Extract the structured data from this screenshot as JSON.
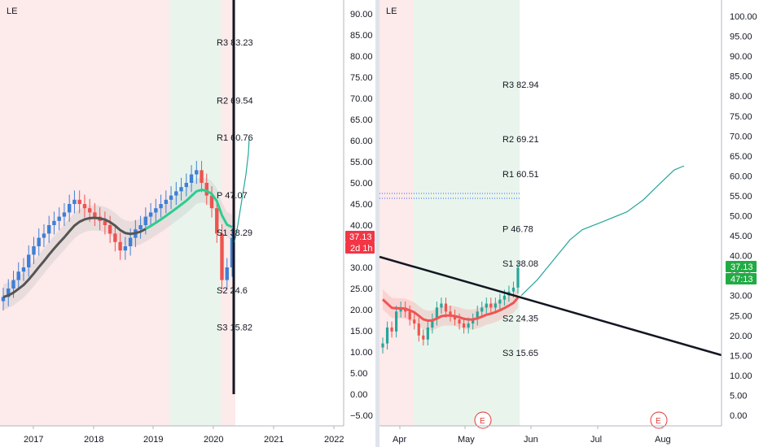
{
  "colors": {
    "bg": "#ffffff",
    "red_zone": "#fdeaea",
    "green_zone": "#e9f5ec",
    "bull": "#26a69a",
    "bear": "#ef5350",
    "candle_up": "#3f7fd6",
    "candle_down": "#ef5350",
    "axis_line": "#9598a1",
    "trend_line": "#131722",
    "cyan_path": "#26a69a",
    "ema_green": "#2ecc8f",
    "ema_gray": "#555555",
    "ema_red": "#f05454",
    "badge_red": "#f23645",
    "badge_green": "#22ab44",
    "dotted_blue": "#2962ff"
  },
  "left_panel": {
    "symbol": "LE",
    "y_ticks": [
      "90.00",
      "85.00",
      "80.00",
      "75.00",
      "70.00",
      "65.00",
      "60.00",
      "55.00",
      "50.00",
      "45.00",
      "40.00",
      "35.00",
      "30.00",
      "25.00",
      "20.00",
      "15.00",
      "10.00",
      "5.00",
      "0.00",
      "−5.00"
    ],
    "x_ticks": [
      "2017",
      "2018",
      "2019",
      "2020",
      "2021",
      "2022"
    ],
    "pivot_levels": [
      {
        "label": "R3 83.23",
        "value": 83.23
      },
      {
        "label": "R2 69.54",
        "value": 69.54
      },
      {
        "label": "R1 60.76",
        "value": 60.76
      },
      {
        "label": "P 47.07",
        "value": 47.07
      },
      {
        "label": "S1 38.29",
        "value": 38.29
      },
      {
        "label": "S2 24.6",
        "value": 24.6
      },
      {
        "label": "S3 15.82",
        "value": 15.82
      }
    ],
    "price_badge": {
      "value": "37.13",
      "countdown": "2d 1h"
    }
  },
  "right_panel": {
    "symbol": "LE",
    "y_ticks": [
      "100.00",
      "95.00",
      "90.00",
      "85.00",
      "80.00",
      "75.00",
      "70.00",
      "65.00",
      "60.00",
      "55.00",
      "50.00",
      "45.00",
      "40.00",
      "35.00",
      "30.00",
      "25.00",
      "20.00",
      "15.00",
      "10.00",
      "5.00",
      "0.00"
    ],
    "x_ticks": [
      "Apr",
      "May",
      "Jun",
      "Jul",
      "Aug"
    ],
    "pivot_levels": [
      {
        "label": "R3 82.94",
        "value": 82.94
      },
      {
        "label": "R2 69.21",
        "value": 69.21
      },
      {
        "label": "R1 60.51",
        "value": 60.51
      },
      {
        "label": "P 46.78",
        "value": 46.78
      },
      {
        "label": "S1 38.08",
        "value": 38.08
      },
      {
        "label": "S2 24.35",
        "value": 24.35
      },
      {
        "label": "S3 15.65",
        "value": 15.65
      }
    ],
    "earnings_markers": [
      "E",
      "E"
    ],
    "price_badges": {
      "price": "37.13",
      "countdown": "47:13"
    }
  },
  "chart_data": [
    {
      "type": "candlestick",
      "panel": "left",
      "x_ticks": [
        "2017",
        "2018",
        "2019",
        "2020",
        "2021",
        "2022"
      ],
      "ylim": [
        -7,
        96
      ],
      "weekly_closes_approx": [
        23,
        25,
        27,
        29,
        30,
        33,
        35,
        37,
        38,
        40,
        41,
        42,
        43,
        45,
        46,
        45,
        44,
        43,
        42,
        41,
        40,
        38,
        36,
        34,
        35,
        37,
        39,
        40,
        42,
        43,
        44,
        45,
        46,
        47,
        48,
        49,
        50,
        52,
        53,
        50,
        47,
        44,
        38,
        27,
        30,
        37
      ],
      "projection": [
        [
          2020.45,
          37
        ],
        [
          2020.47,
          45
        ],
        [
          2020.49,
          52
        ],
        [
          2020.51,
          57
        ],
        [
          2020.53,
          61
        ]
      ],
      "zones": [
        {
          "from": 2016.5,
          "to": 2019.3,
          "kind": "red"
        },
        {
          "from": 2019.3,
          "to": 2020.0,
          "kind": "green"
        },
        {
          "from": 2020.0,
          "to": 2020.4,
          "kind": "red"
        }
      ]
    },
    {
      "type": "candlestick",
      "panel": "right",
      "x_ticks": [
        "Apr",
        "May",
        "Jun",
        "Jul",
        "Aug"
      ],
      "ylim": [
        -2,
        103
      ],
      "daily_closes_approx": [
        18,
        22,
        21,
        26,
        27,
        26,
        24,
        23,
        20,
        19,
        22,
        24,
        27,
        28,
        26,
        25,
        24,
        23,
        22,
        23,
        24,
        26,
        27,
        28,
        27,
        28,
        29,
        30,
        31,
        32,
        37
      ],
      "trendline": [
        [
          0,
          39
        ],
        [
          1,
          15
        ]
      ],
      "projection_approx": [
        37,
        40,
        45,
        52,
        58,
        62
      ]
    }
  ]
}
